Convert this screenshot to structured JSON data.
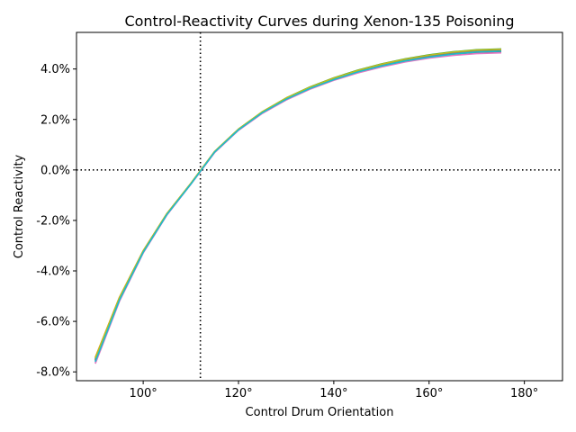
{
  "chart_data": {
    "type": "line",
    "title": "Control-Reactivity Curves during Xenon-135 Poisoning",
    "xlabel": "Control Drum Orientation",
    "ylabel": "Control Reactivity",
    "xlim": [
      86,
      188
    ],
    "ylim": [
      -0.0835,
      0.0545
    ],
    "x_ticks": [
      100,
      120,
      140,
      160,
      180
    ],
    "x_tick_labels": [
      "100°",
      "120°",
      "140°",
      "160°",
      "180°"
    ],
    "y_ticks": [
      -0.08,
      -0.06,
      -0.04,
      -0.02,
      0.0,
      0.02,
      0.04
    ],
    "y_tick_labels": [
      "-8.0%",
      "-6.0%",
      "-4.0%",
      "-2.0%",
      "0.0%",
      "2.0%",
      "4.0%"
    ],
    "grid": false,
    "reference_lines": [
      {
        "orientation": "vertical",
        "x": 112,
        "style": "dotted",
        "color": "#000000"
      },
      {
        "orientation": "horizontal",
        "y": 0.0,
        "style": "dotted",
        "color": "#000000"
      }
    ],
    "x": [
      90,
      95,
      100,
      105,
      110,
      115,
      120,
      125,
      130,
      135,
      140,
      145,
      150,
      155,
      160,
      165,
      170,
      175
    ],
    "series": [
      {
        "color": "#1f77b4",
        "values": [
          -0.0755,
          -0.0515,
          -0.0325,
          -0.0175,
          -0.0055,
          0.0072,
          0.016,
          0.0228,
          0.0282,
          0.0325,
          0.036,
          0.039,
          0.0415,
          0.0435,
          0.045,
          0.0462,
          0.047,
          0.0473
        ]
      },
      {
        "color": "#ff7f0e",
        "values": [
          -0.074,
          -0.0505,
          -0.032,
          -0.0172,
          -0.0053,
          0.0073,
          0.0162,
          0.023,
          0.0284,
          0.0328,
          0.0364,
          0.0393,
          0.0418,
          0.0438,
          0.0454,
          0.0466,
          0.0474,
          0.0478
        ]
      },
      {
        "color": "#2ca02c",
        "values": [
          -0.0745,
          -0.0508,
          -0.0322,
          -0.0173,
          -0.0054,
          0.0073,
          0.0161,
          0.023,
          0.0285,
          0.0329,
          0.0365,
          0.0395,
          0.042,
          0.044,
          0.0456,
          0.0468,
          0.0476,
          0.0479
        ]
      },
      {
        "color": "#d62728",
        "values": [
          -0.075,
          -0.0512,
          -0.0324,
          -0.0174,
          -0.0055,
          0.0071,
          0.0159,
          0.0227,
          0.028,
          0.0323,
          0.0358,
          0.0387,
          0.0411,
          0.043,
          0.0445,
          0.0456,
          0.0463,
          0.0466
        ]
      },
      {
        "color": "#9467bd",
        "values": [
          -0.076,
          -0.0518,
          -0.0327,
          -0.0176,
          -0.0056,
          0.0072,
          0.0161,
          0.0229,
          0.0282,
          0.0326,
          0.0361,
          0.0391,
          0.0416,
          0.0436,
          0.0451,
          0.0463,
          0.0471,
          0.0474
        ]
      },
      {
        "color": "#8c564b",
        "values": [
          -0.0752,
          -0.0513,
          -0.0324,
          -0.0175,
          -0.0055,
          0.0072,
          0.016,
          0.0228,
          0.0281,
          0.0324,
          0.0359,
          0.0389,
          0.0413,
          0.0433,
          0.0448,
          0.046,
          0.0468,
          0.0471
        ]
      },
      {
        "color": "#e377c2",
        "values": [
          -0.0765,
          -0.0521,
          -0.0329,
          -0.0178,
          -0.0057,
          0.0069,
          0.0157,
          0.0224,
          0.0277,
          0.032,
          0.0355,
          0.0384,
          0.0408,
          0.0428,
          0.0443,
          0.0454,
          0.0461,
          0.0464
        ]
      },
      {
        "color": "#7f7f7f",
        "values": [
          -0.0748,
          -0.051,
          -0.0323,
          -0.0174,
          -0.0054,
          0.0072,
          0.0161,
          0.0229,
          0.0283,
          0.0327,
          0.0362,
          0.0392,
          0.0417,
          0.0437,
          0.0452,
          0.0464,
          0.0472,
          0.0476
        ]
      },
      {
        "color": "#bcbd22",
        "values": [
          -0.0742,
          -0.0506,
          -0.0321,
          -0.0172,
          -0.0053,
          0.0073,
          0.0162,
          0.0231,
          0.0285,
          0.0328,
          0.0364,
          0.0394,
          0.0419,
          0.0439,
          0.0455,
          0.0467,
          0.0475,
          0.0478
        ]
      },
      {
        "color": "#17becf",
        "values": [
          -0.0757,
          -0.0516,
          -0.0326,
          -0.0176,
          -0.0056,
          0.0071,
          0.0159,
          0.0227,
          0.028,
          0.0323,
          0.0358,
          0.0388,
          0.0412,
          0.0432,
          0.0447,
          0.0459,
          0.0467,
          0.047
        ]
      }
    ]
  }
}
